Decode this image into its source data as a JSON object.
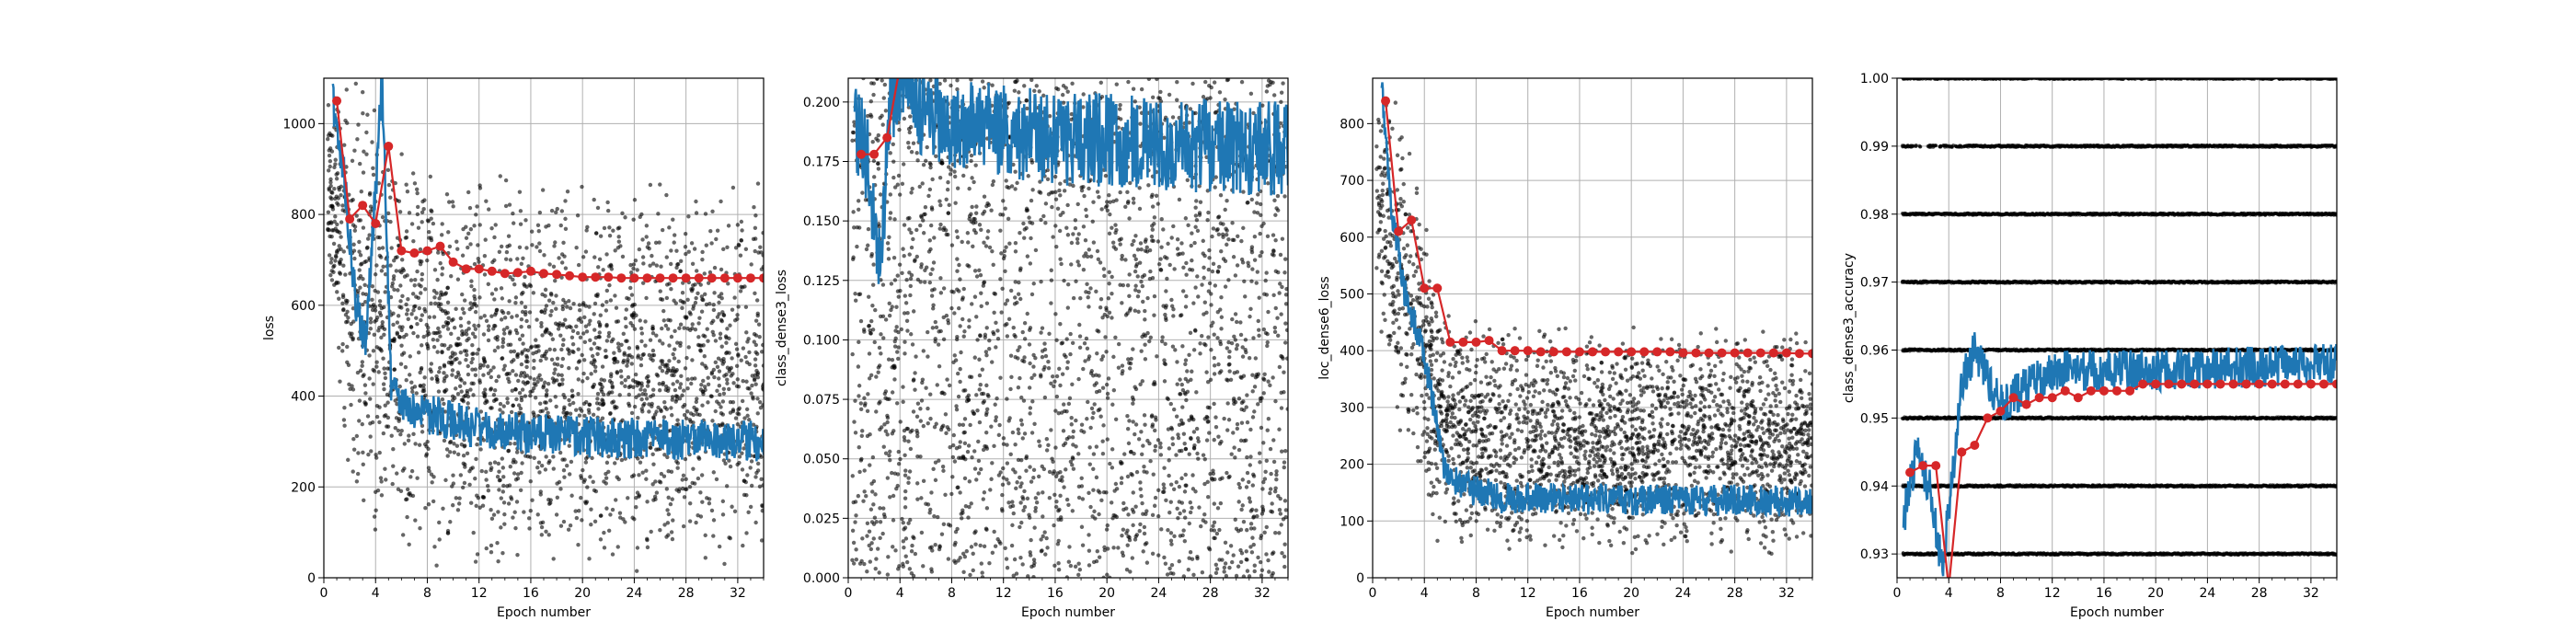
{
  "chart_data": [
    {
      "type": "scatter",
      "title": "",
      "xlabel": "Epoch number",
      "ylabel": "loss",
      "xlim": [
        0,
        34
      ],
      "ylim": [
        0,
        1100
      ],
      "xticks": [
        0,
        4,
        8,
        12,
        16,
        20,
        24,
        28,
        32
      ],
      "yticks": [
        0,
        200,
        400,
        600,
        800,
        1000
      ],
      "grid": true,
      "colors": {
        "scatter": "#000000",
        "running": "#1f77b4",
        "epoch_mean": "#d62728"
      },
      "scatter_cloud": {
        "x_start": 0.3,
        "x_end": 34,
        "y_low": [
          [
            0,
            700
          ],
          [
            2,
            180
          ],
          [
            5,
            20
          ],
          [
            34,
            0
          ]
        ],
        "y_high": [
          [
            0,
            1100
          ],
          [
            3,
            1100
          ],
          [
            6,
            1000
          ],
          [
            12,
            900
          ],
          [
            34,
            880
          ]
        ]
      },
      "running_series": {
        "x_start": 0.7,
        "x_end": 34,
        "curve": [
          [
            0.7,
            1050
          ],
          [
            1.5,
            900
          ],
          [
            2.5,
            600
          ],
          [
            3.2,
            520
          ],
          [
            4,
            850
          ],
          [
            4.5,
            1100
          ],
          [
            5.2,
            420
          ],
          [
            6,
            380
          ],
          [
            8,
            360
          ],
          [
            12,
            330
          ],
          [
            20,
            310
          ],
          [
            34,
            300
          ]
        ],
        "noise": 45
      },
      "epoch_means": {
        "x": [
          1,
          2,
          3,
          4,
          5,
          6,
          7,
          8,
          9,
          10,
          11,
          12,
          13,
          14,
          15,
          16,
          17,
          18,
          19,
          20,
          21,
          22,
          23,
          24,
          25,
          26,
          27,
          28,
          29,
          30,
          31,
          32,
          33,
          34
        ],
        "y": [
          1050,
          790,
          820,
          780,
          950,
          720,
          715,
          720,
          730,
          695,
          680,
          680,
          675,
          670,
          672,
          675,
          670,
          668,
          665,
          662,
          662,
          662,
          660,
          660,
          660,
          660,
          660,
          660,
          660,
          660,
          660,
          660,
          660,
          660
        ]
      }
    },
    {
      "type": "scatter",
      "title": "",
      "xlabel": "Epoch number",
      "ylabel": "class_dense3_loss",
      "xlim": [
        0,
        34
      ],
      "ylim": [
        0,
        0.21
      ],
      "xticks": [
        0,
        4,
        8,
        12,
        16,
        20,
        24,
        28,
        32
      ],
      "yticks": [
        0.0,
        0.025,
        0.05,
        0.075,
        0.1,
        0.125,
        0.15,
        0.175,
        0.2
      ],
      "ytick_labels": [
        "0.000",
        "0.025",
        "0.050",
        "0.075",
        "0.100",
        "0.125",
        "0.150",
        "0.175",
        "0.200"
      ],
      "grid": true,
      "colors": {
        "scatter": "#000000",
        "running": "#1f77b4",
        "epoch_mean": "#d62728"
      },
      "scatter_cloud": {
        "x_start": 0.3,
        "x_end": 34,
        "y_low": [
          [
            0,
            0
          ],
          [
            34,
            0
          ]
        ],
        "y_high": [
          [
            0,
            0.21
          ],
          [
            34,
            0.21
          ]
        ]
      },
      "running_series": {
        "x_start": 0.5,
        "x_end": 34,
        "curve": [
          [
            0.5,
            0.19
          ],
          [
            1.5,
            0.175
          ],
          [
            2,
            0.15
          ],
          [
            2.5,
            0.13
          ],
          [
            3.2,
            0.2
          ],
          [
            4,
            0.21
          ],
          [
            5,
            0.2
          ],
          [
            8,
            0.19
          ],
          [
            16,
            0.185
          ],
          [
            34,
            0.18
          ]
        ],
        "noise": 0.02
      },
      "epoch_means": {
        "x": [
          1,
          2,
          3,
          4
        ],
        "y": [
          0.178,
          0.178,
          0.185,
          0.215
        ]
      }
    },
    {
      "type": "scatter",
      "title": "",
      "xlabel": "Epoch number",
      "ylabel": "loc_dense6_loss",
      "xlim": [
        0,
        34
      ],
      "ylim": [
        0,
        880
      ],
      "xticks": [
        0,
        4,
        8,
        12,
        16,
        20,
        24,
        28,
        32
      ],
      "yticks": [
        0,
        100,
        200,
        300,
        400,
        500,
        600,
        700,
        800
      ],
      "grid": true,
      "colors": {
        "scatter": "#000000",
        "running": "#1f77b4",
        "epoch_mean": "#d62728"
      },
      "scatter_cloud": {
        "x_start": 0.3,
        "x_end": 34,
        "y_low": [
          [
            0,
            500
          ],
          [
            2,
            250
          ],
          [
            5,
            60
          ],
          [
            8,
            40
          ],
          [
            34,
            35
          ]
        ],
        "y_high": [
          [
            0,
            880
          ],
          [
            2,
            850
          ],
          [
            4,
            650
          ],
          [
            6,
            470
          ],
          [
            10,
            450
          ],
          [
            34,
            440
          ]
        ]
      },
      "running_series": {
        "x_start": 0.7,
        "x_end": 34,
        "curve": [
          [
            0.7,
            870
          ],
          [
            1.5,
            640
          ],
          [
            2.5,
            500
          ],
          [
            3.5,
            430
          ],
          [
            4.5,
            330
          ],
          [
            5.5,
            190
          ],
          [
            7,
            160
          ],
          [
            10,
            140
          ],
          [
            34,
            135
          ]
        ],
        "noise": 28
      },
      "epoch_means": {
        "x": [
          1,
          2,
          3,
          4,
          5,
          6,
          7,
          8,
          9,
          10,
          11,
          12,
          13,
          14,
          15,
          16,
          17,
          18,
          19,
          20,
          21,
          22,
          23,
          24,
          25,
          26,
          27,
          28,
          29,
          30,
          31,
          32,
          33,
          34
        ],
        "y": [
          840,
          610,
          630,
          510,
          510,
          415,
          415,
          415,
          418,
          400,
          400,
          400,
          398,
          398,
          398,
          398,
          398,
          398,
          398,
          398,
          398,
          398,
          398,
          396,
          396,
          396,
          396,
          396,
          396,
          396,
          396,
          396,
          395,
          395
        ]
      }
    },
    {
      "type": "scatter",
      "title": "",
      "xlabel": "Epoch number",
      "ylabel": "class_dense3_accuracy",
      "xlim": [
        0,
        34
      ],
      "ylim": [
        0.9265,
        1.0
      ],
      "xticks": [
        0,
        4,
        8,
        12,
        16,
        20,
        24,
        28,
        32
      ],
      "yticks": [
        0.93,
        0.94,
        0.95,
        0.96,
        0.97,
        0.98,
        0.99,
        1.0
      ],
      "ytick_labels": [
        "0.93",
        "0.94",
        "0.95",
        "0.96",
        "0.97",
        "0.98",
        "0.99",
        "1.00"
      ],
      "grid": true,
      "colors": {
        "scatter": "#000000",
        "running": "#1f77b4",
        "epoch_mean": "#d62728"
      },
      "scatter_levels": [
        0.93,
        0.94,
        0.95,
        0.96,
        0.97,
        0.98,
        0.99,
        1.0
      ],
      "running_series": {
        "x_start": 0.5,
        "x_end": 34,
        "curve": [
          [
            0.5,
            0.935
          ],
          [
            1.5,
            0.945
          ],
          [
            2.5,
            0.94
          ],
          [
            3.5,
            0.928
          ],
          [
            4.2,
            0.94
          ],
          [
            5,
            0.955
          ],
          [
            6,
            0.96
          ],
          [
            8,
            0.952
          ],
          [
            12,
            0.957
          ],
          [
            20,
            0.957
          ],
          [
            34,
            0.958
          ]
        ],
        "noise": 0.003
      },
      "epoch_means": {
        "x": [
          1,
          2,
          3,
          4,
          5,
          6,
          7,
          8,
          9,
          10,
          11,
          12,
          13,
          14,
          15,
          16,
          17,
          18,
          19,
          20,
          21,
          22,
          23,
          24,
          25,
          26,
          27,
          28,
          29,
          30,
          31,
          32,
          33,
          34
        ],
        "y": [
          0.942,
          0.943,
          0.943,
          0.925,
          0.945,
          0.946,
          0.95,
          0.951,
          0.953,
          0.952,
          0.953,
          0.953,
          0.954,
          0.953,
          0.954,
          0.954,
          0.954,
          0.954,
          0.955,
          0.955,
          0.955,
          0.955,
          0.955,
          0.955,
          0.955,
          0.955,
          0.955,
          0.955,
          0.955,
          0.955,
          0.955,
          0.955,
          0.955,
          0.955
        ]
      }
    }
  ]
}
